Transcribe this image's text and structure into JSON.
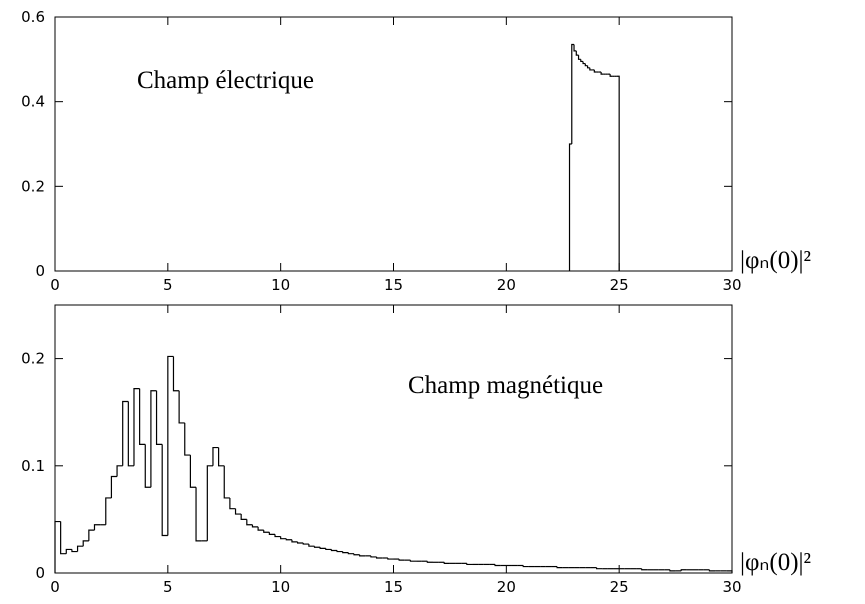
{
  "chart_data": [
    {
      "type": "histogram",
      "annotation": "Champ électrique",
      "xlabel": "|φₙ(0)|²",
      "color": "#000000",
      "xlim": [
        0,
        30
      ],
      "xticks": [
        0,
        5,
        10,
        15,
        20,
        25,
        30
      ],
      "ylim": [
        0,
        0.6
      ],
      "yticks": [
        0,
        0.2,
        0.4,
        0.6
      ],
      "bins": [
        22.8,
        22.9,
        23.0,
        23.1,
        23.2,
        23.3,
        23.4,
        23.5,
        23.6,
        23.7,
        23.8,
        23.9,
        24.0,
        24.1,
        24.2,
        24.3,
        24.4,
        24.5,
        24.6,
        24.7,
        24.8,
        24.9,
        25.0
      ],
      "values": [
        0.3,
        0.535,
        0.52,
        0.51,
        0.5,
        0.495,
        0.49,
        0.485,
        0.48,
        0.475,
        0.475,
        0.47,
        0.47,
        0.47,
        0.465,
        0.465,
        0.465,
        0.465,
        0.46,
        0.46,
        0.46,
        0.46
      ]
    },
    {
      "type": "histogram",
      "annotation": "Champ magnétique",
      "xlabel": "|φₙ(0)|²",
      "color": "#000000",
      "xlim": [
        0,
        30
      ],
      "xticks": [
        0,
        5,
        10,
        15,
        20,
        25,
        30
      ],
      "ylim": [
        0,
        0.25
      ],
      "yticks": [
        0,
        0.1,
        0.2
      ],
      "bins": [
        0,
        0.25,
        0.5,
        0.75,
        1,
        1.25,
        1.5,
        1.75,
        2,
        2.25,
        2.5,
        2.75,
        3,
        3.25,
        3.5,
        3.75,
        4,
        4.25,
        4.5,
        4.75,
        5,
        5.25,
        5.5,
        5.75,
        6,
        6.25,
        6.5,
        6.75,
        7,
        7.25,
        7.5,
        7.75,
        8,
        8.25,
        8.5,
        8.75,
        9,
        9.25,
        9.5,
        9.75,
        10,
        10.25,
        10.5,
        10.75,
        11,
        11.25,
        11.5,
        11.75,
        12,
        12.25,
        12.5,
        12.75,
        13,
        13.25,
        13.5,
        13.75,
        14,
        14.25,
        14.5,
        14.75,
        15,
        15.25,
        15.5,
        15.75,
        16,
        16.25,
        16.5,
        16.75,
        17,
        17.25,
        17.5,
        17.75,
        18,
        18.25,
        18.5,
        18.75,
        19,
        19.25,
        19.5,
        19.75,
        20,
        20.25,
        20.5,
        20.75,
        21,
        21.25,
        21.5,
        21.75,
        22,
        22.25,
        22.5,
        22.75,
        23,
        23.25,
        23.5,
        23.75,
        24,
        24.25,
        24.5,
        24.75,
        25,
        25.25,
        25.5,
        25.75,
        26,
        26.25,
        26.5,
        26.75,
        27,
        27.25,
        27.5,
        27.75,
        28,
        28.25,
        28.5,
        28.75,
        29,
        29.25,
        29.5,
        29.75,
        30
      ],
      "values": [
        0.048,
        0.018,
        0.022,
        0.02,
        0.025,
        0.03,
        0.04,
        0.045,
        0.045,
        0.07,
        0.09,
        0.1,
        0.16,
        0.1,
        0.172,
        0.12,
        0.08,
        0.17,
        0.12,
        0.035,
        0.202,
        0.17,
        0.14,
        0.11,
        0.08,
        0.03,
        0.03,
        0.1,
        0.117,
        0.1,
        0.07,
        0.06,
        0.055,
        0.05,
        0.045,
        0.043,
        0.04,
        0.038,
        0.036,
        0.034,
        0.032,
        0.031,
        0.029,
        0.028,
        0.027,
        0.025,
        0.024,
        0.023,
        0.022,
        0.021,
        0.02,
        0.019,
        0.018,
        0.017,
        0.016,
        0.016,
        0.015,
        0.014,
        0.014,
        0.013,
        0.013,
        0.012,
        0.012,
        0.011,
        0.011,
        0.011,
        0.01,
        0.01,
        0.01,
        0.009,
        0.009,
        0.009,
        0.009,
        0.008,
        0.008,
        0.008,
        0.008,
        0.008,
        0.007,
        0.007,
        0.007,
        0.007,
        0.007,
        0.006,
        0.006,
        0.006,
        0.006,
        0.006,
        0.006,
        0.005,
        0.005,
        0.005,
        0.005,
        0.005,
        0.005,
        0.005,
        0.004,
        0.004,
        0.004,
        0.004,
        0.004,
        0.004,
        0.004,
        0.004,
        0.003,
        0.003,
        0.003,
        0.003,
        0.003,
        0.002,
        0.002,
        0.003,
        0.003,
        0.003,
        0.003,
        0.003,
        0.002,
        0.002,
        0.002,
        0.002
      ]
    }
  ]
}
